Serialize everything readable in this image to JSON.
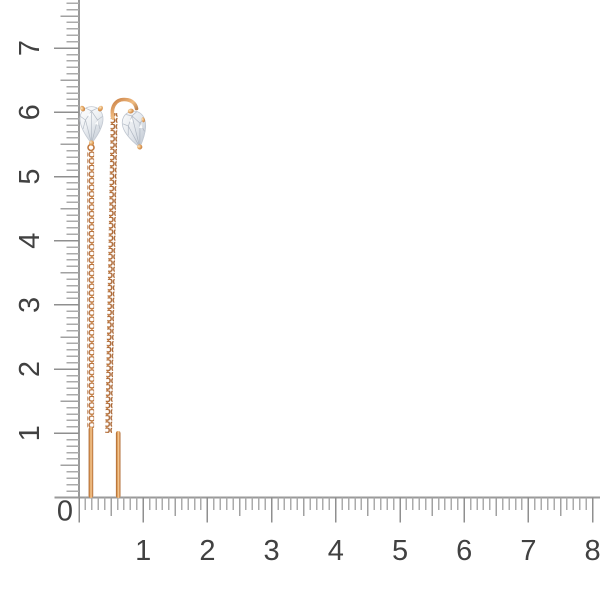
{
  "scene": {
    "description": "Product photo: pair of rose-gold threader chain earrings with pear-cut diamond tops, laid against centimeter rulers on a white background",
    "earring_span_cm": 6
  },
  "ruler": {
    "origin_label": "0",
    "horizontal": {
      "labels": [
        "1",
        "2",
        "3",
        "4",
        "5",
        "6",
        "7",
        "8"
      ],
      "minor_ticks": 81
    },
    "vertical": {
      "labels": [
        "1",
        "2",
        "3",
        "4",
        "5",
        "6",
        "7"
      ],
      "minor_ticks": 78
    }
  },
  "colors": {
    "background": "#ffffff",
    "ruler_line": "#9a9a9a",
    "tick_minor": "#ababab",
    "tick_medium": "#a1a1a1",
    "tick_major": "#8f8f8f",
    "label_text": "#414141",
    "gold_dark": "#a5622f",
    "gold_mid": "#d38a4e",
    "gold_light": "#f0b97e",
    "gold_highlight": "#f9dcae",
    "diamond_light": "#ffffff",
    "diamond_mid": "#dfe4e9",
    "diamond_shadow": "#aab2be"
  }
}
